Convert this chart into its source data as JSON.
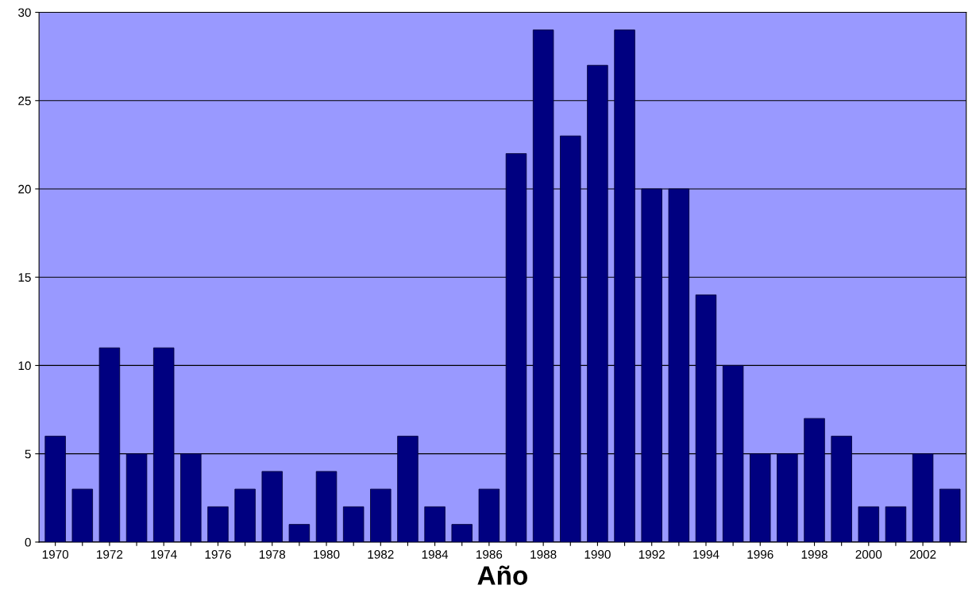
{
  "chart_data": {
    "type": "bar",
    "xlabel": "Año",
    "categories": [
      "1970",
      null,
      "1972",
      null,
      "1974",
      null,
      "1976",
      null,
      "1978",
      null,
      "1980",
      null,
      "1982",
      null,
      "1984",
      null,
      "1986",
      null,
      "1988",
      null,
      "1990",
      null,
      "1992",
      null,
      "1994",
      null,
      "1996",
      null,
      "1998",
      null,
      "2000",
      null,
      "2002",
      null
    ],
    "values": [
      6,
      3,
      11,
      5,
      11,
      5,
      2,
      3,
      4,
      1,
      4,
      2,
      3,
      6,
      2,
      1,
      3,
      22,
      29,
      23,
      27,
      29,
      20,
      20,
      14,
      10,
      5,
      5,
      7,
      6,
      2,
      2,
      5,
      3
    ],
    "color": "#000080",
    "ylim": [
      0,
      30
    ],
    "yticks": [
      0,
      5,
      10,
      15,
      20,
      25,
      30
    ],
    "grid": "y"
  }
}
